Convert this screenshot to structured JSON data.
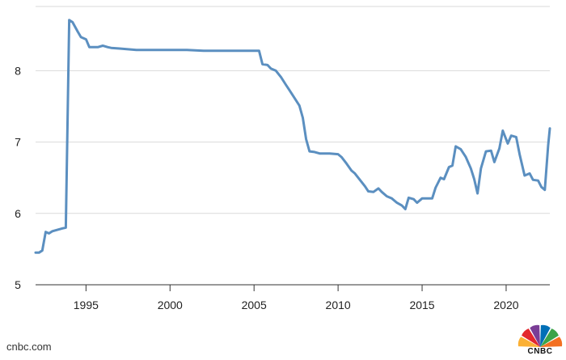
{
  "chart_data": {
    "type": "line",
    "title": "",
    "xlabel": "",
    "ylabel": "",
    "xlim": [
      1992.0,
      2022.6
    ],
    "ylim": [
      5,
      8.9
    ],
    "x_ticks": [
      1995,
      2000,
      2005,
      2010,
      2015,
      2020
    ],
    "x_tick_labels": [
      "1995",
      "2000",
      "2005",
      "2010",
      "2015",
      "2020"
    ],
    "y_ticks": [
      5,
      6,
      7,
      8
    ],
    "y_tick_labels": [
      "5",
      "6",
      "7",
      "8"
    ],
    "grid": "horizontal",
    "legend": "none",
    "series": [
      {
        "color": "#5b8fc0",
        "points": [
          [
            1992.0,
            5.45
          ],
          [
            1992.2,
            5.45
          ],
          [
            1992.4,
            5.48
          ],
          [
            1992.6,
            5.74
          ],
          [
            1992.8,
            5.72
          ],
          [
            1993.0,
            5.75
          ],
          [
            1993.3,
            5.77
          ],
          [
            1993.6,
            5.79
          ],
          [
            1993.8,
            5.8
          ],
          [
            1994.0,
            8.71
          ],
          [
            1994.2,
            8.68
          ],
          [
            1994.5,
            8.55
          ],
          [
            1994.7,
            8.47
          ],
          [
            1995.0,
            8.44
          ],
          [
            1995.2,
            8.33
          ],
          [
            1995.5,
            8.33
          ],
          [
            1995.7,
            8.33
          ],
          [
            1996.0,
            8.35
          ],
          [
            1996.3,
            8.33
          ],
          [
            1996.5,
            8.32
          ],
          [
            1997.0,
            8.31
          ],
          [
            1998.0,
            8.29
          ],
          [
            1999.0,
            8.29
          ],
          [
            2000.0,
            8.29
          ],
          [
            2001.0,
            8.29
          ],
          [
            2002.0,
            8.28
          ],
          [
            2003.0,
            8.28
          ],
          [
            2004.0,
            8.28
          ],
          [
            2005.0,
            8.28
          ],
          [
            2005.3,
            8.28
          ],
          [
            2005.5,
            8.09
          ],
          [
            2005.8,
            8.08
          ],
          [
            2006.0,
            8.03
          ],
          [
            2006.3,
            8.0
          ],
          [
            2006.6,
            7.91
          ],
          [
            2006.9,
            7.8
          ],
          [
            2007.1,
            7.73
          ],
          [
            2007.4,
            7.62
          ],
          [
            2007.7,
            7.51
          ],
          [
            2007.9,
            7.34
          ],
          [
            2008.1,
            7.04
          ],
          [
            2008.3,
            6.87
          ],
          [
            2008.6,
            6.86
          ],
          [
            2008.9,
            6.84
          ],
          [
            2009.2,
            6.84
          ],
          [
            2009.5,
            6.84
          ],
          [
            2010.0,
            6.83
          ],
          [
            2010.2,
            6.79
          ],
          [
            2010.5,
            6.7
          ],
          [
            2010.8,
            6.6
          ],
          [
            2011.0,
            6.56
          ],
          [
            2011.3,
            6.47
          ],
          [
            2011.6,
            6.38
          ],
          [
            2011.8,
            6.31
          ],
          [
            2012.1,
            6.3
          ],
          [
            2012.4,
            6.35
          ],
          [
            2012.6,
            6.3
          ],
          [
            2012.9,
            6.24
          ],
          [
            2013.2,
            6.21
          ],
          [
            2013.5,
            6.15
          ],
          [
            2013.8,
            6.11
          ],
          [
            2014.0,
            6.06
          ],
          [
            2014.2,
            6.22
          ],
          [
            2014.5,
            6.2
          ],
          [
            2014.7,
            6.15
          ],
          [
            2015.0,
            6.21
          ],
          [
            2015.3,
            6.21
          ],
          [
            2015.6,
            6.21
          ],
          [
            2015.8,
            6.36
          ],
          [
            2016.1,
            6.5
          ],
          [
            2016.3,
            6.48
          ],
          [
            2016.6,
            6.65
          ],
          [
            2016.8,
            6.67
          ],
          [
            2017.0,
            6.94
          ],
          [
            2017.3,
            6.9
          ],
          [
            2017.6,
            6.79
          ],
          [
            2017.9,
            6.63
          ],
          [
            2018.1,
            6.48
          ],
          [
            2018.3,
            6.28
          ],
          [
            2018.5,
            6.63
          ],
          [
            2018.8,
            6.87
          ],
          [
            2019.1,
            6.88
          ],
          [
            2019.3,
            6.72
          ],
          [
            2019.6,
            6.91
          ],
          [
            2019.8,
            7.16
          ],
          [
            2020.1,
            6.98
          ],
          [
            2020.3,
            7.09
          ],
          [
            2020.6,
            7.07
          ],
          [
            2020.8,
            6.83
          ],
          [
            2021.1,
            6.53
          ],
          [
            2021.4,
            6.56
          ],
          [
            2021.6,
            6.47
          ],
          [
            2021.9,
            6.46
          ],
          [
            2022.1,
            6.37
          ],
          [
            2022.3,
            6.33
          ],
          [
            2022.5,
            6.95
          ],
          [
            2022.6,
            7.19
          ]
        ]
      }
    ]
  },
  "footer": {
    "source": "cnbc.com",
    "logo_text": "CNBC",
    "logo_colors": [
      "#fbb034",
      "#e3272d",
      "#7a3d96",
      "#006fb6",
      "#3ba348",
      "#f37021"
    ]
  }
}
